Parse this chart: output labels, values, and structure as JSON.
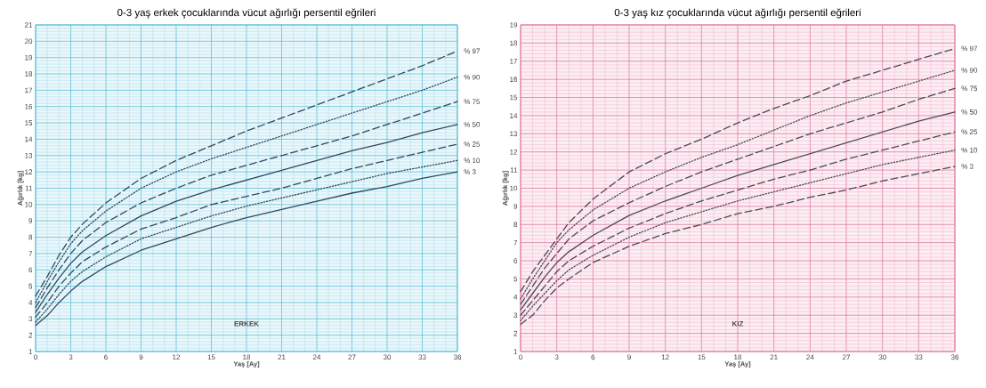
{
  "chart_data": [
    {
      "type": "line",
      "title": "0-3 yaş erkek çocuklarında vücut ağırlığı persentil eğrileri",
      "xlabel": "Yaş [Ay]",
      "ylabel": "Ağırlık [kg]",
      "annotations": [
        "ERKEK"
      ],
      "x": [
        0,
        1,
        2,
        3,
        4,
        6,
        9,
        12,
        15,
        18,
        21,
        24,
        27,
        30,
        33,
        36
      ],
      "xlim": [
        0,
        36
      ],
      "xticks": [
        0,
        {
          "value": 1,
          "label": null
        },
        {
          "value": 2,
          "label": null
        },
        3,
        {
          "value": 4,
          "label": null
        },
        {
          "value": 5,
          "label": null
        },
        6,
        {
          "value": 7,
          "label": null
        },
        {
          "value": 8,
          "label": null
        },
        9,
        {
          "value": 10,
          "label": null
        },
        {
          "value": 11,
          "label": null
        },
        12,
        {
          "value": 13,
          "label": null
        },
        {
          "value": 14,
          "label": null
        },
        15,
        {
          "value": 16,
          "label": null
        },
        {
          "value": 17,
          "label": null
        },
        18,
        {
          "value": 19,
          "label": null
        },
        {
          "value": 20,
          "label": null
        },
        21,
        {
          "value": 22,
          "label": null
        },
        {
          "value": 23,
          "label": null
        },
        24,
        {
          "value": 25,
          "label": null
        },
        {
          "value": 26,
          "label": null
        },
        27,
        {
          "value": 28,
          "label": null
        },
        {
          "value": 29,
          "label": null
        },
        30,
        {
          "value": 31,
          "label": null
        },
        {
          "value": 32,
          "label": null
        },
        33,
        {
          "value": 34,
          "label": null
        },
        {
          "value": 35,
          "label": null
        },
        36
      ],
      "ylim": [
        1,
        21
      ],
      "yticks": [
        1,
        {
          "value": 1.2,
          "label": null
        },
        {
          "value": 1.4,
          "label": null
        },
        {
          "value": 1.6,
          "label": null
        },
        {
          "value": 1.8,
          "label": null
        },
        2,
        {
          "value": 2.2,
          "label": null
        },
        {
          "value": 2.4,
          "label": null
        },
        {
          "value": 2.6,
          "label": null
        },
        {
          "value": 2.8,
          "label": null
        },
        3,
        {
          "value": 3.2,
          "label": null
        },
        {
          "value": 3.4,
          "label": null
        },
        {
          "value": 3.6,
          "label": null
        },
        {
          "value": 3.8,
          "label": null
        },
        4,
        {
          "value": 4.2,
          "label": null
        },
        {
          "value": 4.4,
          "label": null
        },
        {
          "value": 4.6,
          "label": null
        },
        {
          "value": 4.8,
          "label": null
        },
        5,
        {
          "value": 5.2,
          "label": null
        },
        {
          "value": 5.4,
          "label": null
        },
        {
          "value": 5.6,
          "label": null
        },
        {
          "value": 5.8,
          "label": null
        },
        6,
        {
          "value": 6.2,
          "label": null
        },
        {
          "value": 6.4,
          "label": null
        },
        {
          "value": 6.6,
          "label": null
        },
        {
          "value": 6.8,
          "label": null
        },
        7,
        {
          "value": 7.2,
          "label": null
        },
        {
          "value": 7.4,
          "label": null
        },
        {
          "value": 7.6,
          "label": null
        },
        {
          "value": 7.8,
          "label": null
        },
        8,
        {
          "value": 8.2,
          "label": null
        },
        {
          "value": 8.4,
          "label": null
        },
        {
          "value": 8.6,
          "label": null
        },
        {
          "value": 8.8,
          "label": null
        },
        9,
        {
          "value": 9.2,
          "label": null
        },
        {
          "value": 9.4,
          "label": null
        },
        {
          "value": 9.6,
          "label": null
        },
        {
          "value": 9.8,
          "label": null
        },
        10,
        {
          "value": 10.2,
          "label": null
        },
        {
          "value": 10.4,
          "label": null
        },
        {
          "value": 10.6,
          "label": null
        },
        {
          "value": 10.8,
          "label": null
        },
        11,
        {
          "value": 11.2,
          "label": null
        },
        {
          "value": 11.4,
          "label": null
        },
        {
          "value": 11.6,
          "label": null
        },
        {
          "value": 11.8,
          "label": null
        },
        12,
        {
          "value": 12.2,
          "label": null
        },
        {
          "value": 12.4,
          "label": null
        },
        {
          "value": 12.6,
          "label": null
        },
        {
          "value": 12.8,
          "label": null
        },
        13,
        {
          "value": 13.2,
          "label": null
        },
        {
          "value": 13.4,
          "label": null
        },
        {
          "value": 13.6,
          "label": null
        },
        {
          "value": 13.8,
          "label": null
        },
        14,
        {
          "value": 14.2,
          "label": null
        },
        {
          "value": 14.4,
          "label": null
        },
        {
          "value": 14.6,
          "label": null
        },
        {
          "value": 14.8,
          "label": null
        },
        15,
        {
          "value": 15.2,
          "label": null
        },
        {
          "value": 15.4,
          "label": null
        },
        {
          "value": 15.6,
          "label": null
        },
        {
          "value": 15.8,
          "label": null
        },
        16,
        {
          "value": 16.2,
          "label": null
        },
        {
          "value": 16.4,
          "label": null
        },
        {
          "value": 16.6,
          "label": null
        },
        {
          "value": 16.8,
          "label": null
        },
        17,
        {
          "value": 17.2,
          "label": null
        },
        {
          "value": 17.4,
          "label": null
        },
        {
          "value": 17.6,
          "label": null
        },
        {
          "value": 17.8,
          "label": null
        },
        18,
        {
          "value": 18.2,
          "label": null
        },
        {
          "value": 18.4,
          "label": null
        },
        {
          "value": 18.6,
          "label": null
        },
        {
          "value": 18.8,
          "label": null
        },
        19,
        {
          "value": 19.2,
          "label": null
        },
        {
          "value": 19.4,
          "label": null
        },
        {
          "value": 19.6,
          "label": null
        },
        {
          "value": 19.8,
          "label": null
        },
        20,
        {
          "value": 20.2,
          "label": null
        },
        {
          "value": 20.4,
          "label": null
        },
        {
          "value": 20.6,
          "label": null
        },
        {
          "value": 20.8,
          "label": null
        },
        21
      ],
      "grid": true,
      "legend": false,
      "series": [
        {
          "name": "% 97",
          "color": "#2e4a62",
          "line_style": "dashed",
          "values": [
            4.4,
            5.6,
            6.9,
            8.0,
            8.8,
            10.1,
            11.6,
            12.7,
            13.6,
            14.5,
            15.3,
            16.1,
            16.9,
            17.7,
            18.5,
            19.4
          ]
        },
        {
          "name": "% 90",
          "color": "#2e4a62",
          "line_style": "dotted",
          "values": [
            4.0,
            5.3,
            6.5,
            7.6,
            8.4,
            9.6,
            11.0,
            12.0,
            12.8,
            13.5,
            14.2,
            14.9,
            15.6,
            16.3,
            17.0,
            17.8
          ]
        },
        {
          "name": "% 75",
          "color": "#2e4a62",
          "line_style": "dashed",
          "values": [
            3.7,
            4.9,
            6.0,
            7.0,
            7.8,
            8.9,
            10.1,
            11.0,
            11.8,
            12.4,
            13.0,
            13.6,
            14.2,
            14.9,
            15.6,
            16.3
          ]
        },
        {
          "name": "% 50",
          "color": "#2e4a62",
          "line_style": "solid",
          "values": [
            3.4,
            4.5,
            5.5,
            6.4,
            7.1,
            8.1,
            9.3,
            10.2,
            10.9,
            11.5,
            12.1,
            12.7,
            13.3,
            13.8,
            14.4,
            14.9
          ]
        },
        {
          "name": "% 25",
          "color": "#2e4a62",
          "line_style": "dashed",
          "values": [
            3.1,
            4.0,
            5.0,
            5.8,
            6.5,
            7.4,
            8.5,
            9.2,
            10.0,
            10.5,
            11.0,
            11.6,
            12.2,
            12.7,
            13.2,
            13.7
          ]
        },
        {
          "name": "% 10",
          "color": "#2e4a62",
          "line_style": "dotted",
          "values": [
            2.8,
            3.6,
            4.5,
            5.3,
            5.9,
            6.8,
            7.9,
            8.6,
            9.3,
            9.9,
            10.4,
            10.9,
            11.4,
            11.9,
            12.3,
            12.7
          ]
        },
        {
          "name": "% 3",
          "color": "#2e4a62",
          "line_style": "solid",
          "values": [
            2.6,
            3.2,
            4.0,
            4.7,
            5.3,
            6.2,
            7.2,
            7.9,
            8.6,
            9.2,
            9.7,
            10.2,
            10.7,
            11.1,
            11.6,
            12.0
          ]
        }
      ]
    },
    {
      "type": "line",
      "title": "0-3 yaş kız çocuklarında vücut ağırlığı persentil eğrileri",
      "xlabel": "Yaş [Ay]",
      "ylabel": "Ağırlık [kg]",
      "annotations": [
        "KIZ"
      ],
      "x": [
        0,
        1,
        2,
        3,
        4,
        6,
        9,
        12,
        15,
        18,
        21,
        24,
        27,
        30,
        33,
        36
      ],
      "xlim": [
        0,
        36
      ],
      "xticks": [
        0,
        {
          "value": 1,
          "label": null
        },
        {
          "value": 2,
          "label": null
        },
        3,
        {
          "value": 4,
          "label": null
        },
        {
          "value": 5,
          "label": null
        },
        6,
        {
          "value": 7,
          "label": null
        },
        {
          "value": 8,
          "label": null
        },
        9,
        {
          "value": 10,
          "label": null
        },
        {
          "value": 11,
          "label": null
        },
        12,
        {
          "value": 13,
          "label": null
        },
        {
          "value": 14,
          "label": null
        },
        15,
        {
          "value": 16,
          "label": null
        },
        {
          "value": 17,
          "label": null
        },
        18,
        {
          "value": 19,
          "label": null
        },
        {
          "value": 20,
          "label": null
        },
        21,
        {
          "value": 22,
          "label": null
        },
        {
          "value": 23,
          "label": null
        },
        24,
        {
          "value": 25,
          "label": null
        },
        {
          "value": 26,
          "label": null
        },
        27,
        {
          "value": 28,
          "label": null
        },
        {
          "value": 29,
          "label": null
        },
        30,
        {
          "value": 31,
          "label": null
        },
        {
          "value": 32,
          "label": null
        },
        33,
        {
          "value": 34,
          "label": null
        },
        {
          "value": 35,
          "label": null
        },
        36
      ],
      "ylim": [
        1,
        19
      ],
      "yticks": [
        1,
        {
          "value": 1.2,
          "label": null
        },
        {
          "value": 1.4,
          "label": null
        },
        {
          "value": 1.6,
          "label": null
        },
        {
          "value": 1.8,
          "label": null
        },
        2,
        {
          "value": 2.2,
          "label": null
        },
        {
          "value": 2.4,
          "label": null
        },
        {
          "value": 2.6,
          "label": null
        },
        {
          "value": 2.8,
          "label": null
        },
        3,
        {
          "value": 3.2,
          "label": null
        },
        {
          "value": 3.4,
          "label": null
        },
        {
          "value": 3.6,
          "label": null
        },
        {
          "value": 3.8,
          "label": null
        },
        4,
        {
          "value": 4.2,
          "label": null
        },
        {
          "value": 4.4,
          "label": null
        },
        {
          "value": 4.6,
          "label": null
        },
        {
          "value": 4.8,
          "label": null
        },
        5,
        {
          "value": 5.2,
          "label": null
        },
        {
          "value": 5.4,
          "label": null
        },
        {
          "value": 5.6,
          "label": null
        },
        {
          "value": 5.8,
          "label": null
        },
        6,
        {
          "value": 6.2,
          "label": null
        },
        {
          "value": 6.4,
          "label": null
        },
        {
          "value": 6.6,
          "label": null
        },
        {
          "value": 6.8,
          "label": null
        },
        7,
        {
          "value": 7.2,
          "label": null
        },
        {
          "value": 7.4,
          "label": null
        },
        {
          "value": 7.6,
          "label": null
        },
        {
          "value": 7.8,
          "label": null
        },
        8,
        {
          "value": 8.2,
          "label": null
        },
        {
          "value": 8.4,
          "label": null
        },
        {
          "value": 8.6,
          "label": null
        },
        {
          "value": 8.8,
          "label": null
        },
        9,
        {
          "value": 9.2,
          "label": null
        },
        {
          "value": 9.4,
          "label": null
        },
        {
          "value": 9.6,
          "label": null
        },
        {
          "value": 9.8,
          "label": null
        },
        10,
        {
          "value": 10.2,
          "label": null
        },
        {
          "value": 10.4,
          "label": null
        },
        {
          "value": 10.6,
          "label": null
        },
        {
          "value": 10.8,
          "label": null
        },
        11,
        {
          "value": 11.2,
          "label": null
        },
        {
          "value": 11.4,
          "label": null
        },
        {
          "value": 11.6,
          "label": null
        },
        {
          "value": 11.8,
          "label": null
        },
        12,
        {
          "value": 12.2,
          "label": null
        },
        {
          "value": 12.4,
          "label": null
        },
        {
          "value": 12.6,
          "label": null
        },
        {
          "value": 12.8,
          "label": null
        },
        13,
        {
          "value": 13.2,
          "label": null
        },
        {
          "value": 13.4,
          "label": null
        },
        {
          "value": 13.6,
          "label": null
        },
        {
          "value": 13.8,
          "label": null
        },
        14,
        {
          "value": 14.2,
          "label": null
        },
        {
          "value": 14.4,
          "label": null
        },
        {
          "value": 14.6,
          "label": null
        },
        {
          "value": 14.8,
          "label": null
        },
        15,
        {
          "value": 15.2,
          "label": null
        },
        {
          "value": 15.4,
          "label": null
        },
        {
          "value": 15.6,
          "label": null
        },
        {
          "value": 15.8,
          "label": null
        },
        16,
        {
          "value": 16.2,
          "label": null
        },
        {
          "value": 16.4,
          "label": null
        },
        {
          "value": 16.6,
          "label": null
        },
        {
          "value": 16.8,
          "label": null
        },
        17,
        {
          "value": 17.2,
          "label": null
        },
        {
          "value": 17.4,
          "label": null
        },
        {
          "value": 17.6,
          "label": null
        },
        {
          "value": 17.8,
          "label": null
        },
        18,
        {
          "value": 18.2,
          "label": null
        },
        {
          "value": 18.4,
          "label": null
        },
        {
          "value": 18.6,
          "label": null
        },
        {
          "value": 18.8,
          "label": null
        },
        19
      ],
      "grid": true,
      "legend": false,
      "series": [
        {
          "name": "% 97",
          "color": "#4a4a5a",
          "line_style": "dashed",
          "values": [
            4.3,
            5.4,
            6.3,
            7.2,
            8.1,
            9.4,
            10.9,
            11.9,
            12.7,
            13.6,
            14.4,
            15.1,
            15.9,
            16.5,
            17.1,
            17.7
          ]
        },
        {
          "name": "% 90",
          "color": "#4a4a5a",
          "line_style": "dotted",
          "values": [
            3.9,
            5.0,
            6.0,
            7.0,
            7.7,
            8.8,
            10.0,
            10.9,
            11.7,
            12.4,
            13.2,
            14.0,
            14.7,
            15.3,
            15.9,
            16.5
          ]
        },
        {
          "name": "% 75",
          "color": "#4a4a5a",
          "line_style": "dashed",
          "values": [
            3.6,
            4.6,
            5.6,
            6.4,
            7.2,
            8.2,
            9.2,
            10.1,
            10.9,
            11.6,
            12.3,
            13.0,
            13.6,
            14.2,
            14.9,
            15.5
          ]
        },
        {
          "name": "% 50",
          "color": "#4a4a5a",
          "line_style": "solid",
          "values": [
            3.3,
            4.2,
            5.1,
            5.9,
            6.5,
            7.4,
            8.5,
            9.3,
            10.0,
            10.7,
            11.3,
            11.9,
            12.5,
            13.1,
            13.7,
            14.2
          ]
        },
        {
          "name": "% 25",
          "color": "#4a4a5a",
          "line_style": "dashed",
          "values": [
            3.0,
            3.8,
            4.6,
            5.4,
            6.0,
            6.8,
            7.8,
            8.6,
            9.3,
            9.9,
            10.5,
            11.0,
            11.6,
            12.1,
            12.6,
            13.1
          ]
        },
        {
          "name": "% 10",
          "color": "#4a4a5a",
          "line_style": "dotted",
          "values": [
            2.7,
            3.5,
            4.2,
            4.9,
            5.5,
            6.3,
            7.3,
            8.1,
            8.7,
            9.3,
            9.8,
            10.3,
            10.8,
            11.3,
            11.7,
            12.1
          ]
        },
        {
          "name": "% 3",
          "color": "#4a4a5a",
          "line_style": "dashed",
          "values": [
            2.5,
            3.0,
            3.8,
            4.5,
            5.0,
            5.9,
            6.8,
            7.5,
            8.0,
            8.6,
            9.0,
            9.5,
            9.9,
            10.4,
            10.8,
            11.2
          ]
        }
      ]
    }
  ]
}
